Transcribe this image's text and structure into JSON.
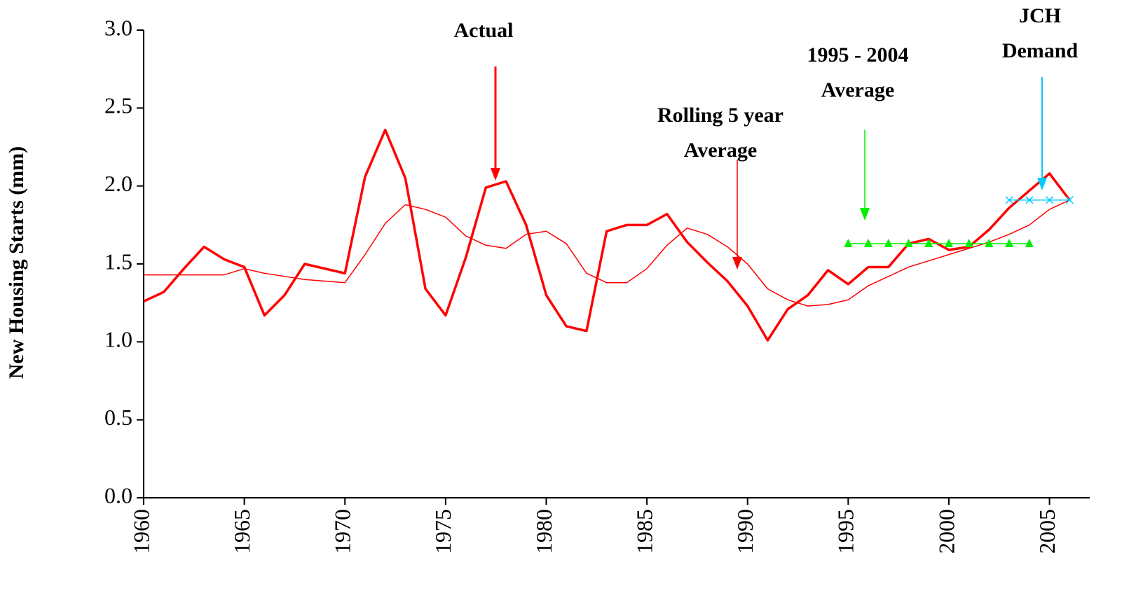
{
  "chart_data": {
    "type": "line",
    "y_label": "New Housing Starts (mm)",
    "x": [
      1960,
      1961,
      1962,
      1963,
      1964,
      1965,
      1966,
      1967,
      1968,
      1969,
      1970,
      1971,
      1972,
      1973,
      1974,
      1975,
      1976,
      1977,
      1978,
      1979,
      1980,
      1981,
      1982,
      1983,
      1984,
      1985,
      1986,
      1987,
      1988,
      1989,
      1990,
      1991,
      1992,
      1993,
      1994,
      1995,
      1996,
      1997,
      1998,
      1999,
      2000,
      2001,
      2002,
      2003,
      2004,
      2005,
      2006
    ],
    "series": [
      {
        "name": "Actual",
        "color": "#ff0000",
        "width": 3.5,
        "marker": null,
        "values": [
          1.26,
          1.32,
          1.47,
          1.61,
          1.53,
          1.48,
          1.17,
          1.3,
          1.5,
          1.47,
          1.44,
          2.06,
          2.36,
          2.05,
          1.34,
          1.17,
          1.54,
          1.99,
          2.03,
          1.75,
          1.3,
          1.1,
          1.07,
          1.71,
          1.75,
          1.75,
          1.82,
          1.64,
          1.51,
          1.39,
          1.23,
          1.01,
          1.21,
          1.3,
          1.46,
          1.37,
          1.48,
          1.48,
          1.63,
          1.66,
          1.59,
          1.61,
          1.72,
          1.86,
          1.97,
          2.08,
          1.91
        ]
      },
      {
        "name": "Rolling 5 year Average",
        "color": "#ff0000",
        "width": 1.5,
        "marker": null,
        "values": [
          1.43,
          1.43,
          1.43,
          1.43,
          1.43,
          1.47,
          1.44,
          1.42,
          1.4,
          1.39,
          1.38,
          1.56,
          1.76,
          1.88,
          1.85,
          1.8,
          1.68,
          1.62,
          1.6,
          1.69,
          1.71,
          1.63,
          1.44,
          1.38,
          1.38,
          1.47,
          1.62,
          1.73,
          1.69,
          1.61,
          1.5,
          1.34,
          1.27,
          1.23,
          1.24,
          1.27,
          1.36,
          1.42,
          1.48,
          1.52,
          1.56,
          1.6,
          1.64,
          1.69,
          1.75,
          1.85,
          1.91
        ]
      },
      {
        "name": "1995 - 2004 Average",
        "color": "#00ee00",
        "width": 1.5,
        "marker": "triangle",
        "values": [
          null,
          null,
          null,
          null,
          null,
          null,
          null,
          null,
          null,
          null,
          null,
          null,
          null,
          null,
          null,
          null,
          null,
          null,
          null,
          null,
          null,
          null,
          null,
          null,
          null,
          null,
          null,
          null,
          null,
          null,
          null,
          null,
          null,
          null,
          null,
          1.63,
          1.63,
          1.63,
          1.63,
          1.63,
          1.63,
          1.63,
          1.63,
          1.63,
          1.63,
          null,
          null
        ]
      },
      {
        "name": "JCH Demand",
        "color": "#00ccff",
        "width": 1.5,
        "marker": "x",
        "values": [
          null,
          null,
          null,
          null,
          null,
          null,
          null,
          null,
          null,
          null,
          null,
          null,
          null,
          null,
          null,
          null,
          null,
          null,
          null,
          null,
          null,
          null,
          null,
          null,
          null,
          null,
          null,
          null,
          null,
          null,
          null,
          null,
          null,
          null,
          null,
          null,
          null,
          null,
          null,
          null,
          null,
          null,
          null,
          1.91,
          1.91,
          1.91,
          1.91
        ]
      }
    ],
    "annotations": [
      {
        "lines": [
          "Actual"
        ],
        "color": "#ff0000"
      },
      {
        "lines": [
          "Rolling 5 year",
          "Average"
        ],
        "color": "#ff0000"
      },
      {
        "lines": [
          "1995 - 2004",
          "Average"
        ],
        "color": "#00ee00"
      },
      {
        "lines": [
          "JCH",
          "Demand"
        ],
        "color": "#00ccff"
      }
    ],
    "xlim": [
      1960,
      2007
    ],
    "xticks": [
      1960,
      1965,
      1970,
      1975,
      1980,
      1985,
      1990,
      1995,
      2000,
      2005
    ],
    "ylim": [
      0,
      3
    ],
    "yticks": [
      {
        "value": 0,
        "label": "0.0"
      },
      {
        "value": 0.5,
        "label": "0.5"
      },
      {
        "value": 1,
        "label": "1.0"
      },
      {
        "value": 1.5,
        "label": "1.5"
      },
      {
        "value": 2,
        "label": "2.0"
      },
      {
        "value": 2.5,
        "label": "2.5"
      },
      {
        "value": 3,
        "label": "3.0"
      }
    ],
    "grid": false
  }
}
